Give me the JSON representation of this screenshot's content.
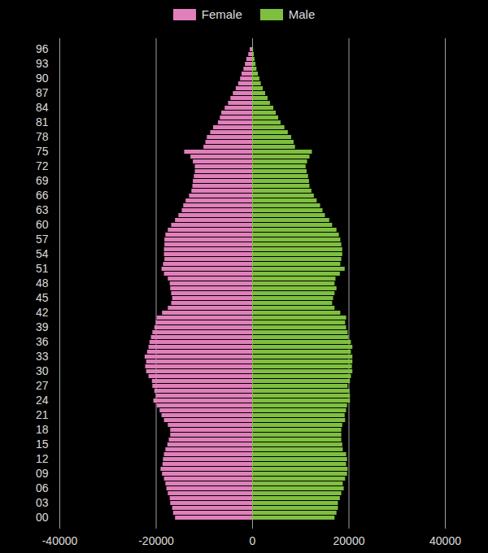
{
  "chart_data": {
    "type": "bar",
    "orientation": "horizontal",
    "categories": [
      "00",
      null,
      null,
      "03",
      null,
      null,
      "06",
      null,
      null,
      "09",
      null,
      null,
      "12",
      null,
      null,
      "15",
      null,
      null,
      "18",
      null,
      null,
      "21",
      null,
      null,
      "24",
      null,
      null,
      "27",
      null,
      null,
      "30",
      null,
      null,
      "33",
      null,
      null,
      "36",
      null,
      null,
      "39",
      null,
      null,
      "42",
      null,
      null,
      "45",
      null,
      null,
      "48",
      null,
      null,
      "51",
      null,
      null,
      "54",
      null,
      null,
      "57",
      null,
      null,
      "60",
      null,
      null,
      "63",
      null,
      null,
      "66",
      null,
      null,
      "69",
      null,
      null,
      "72",
      null,
      null,
      "75",
      null,
      null,
      "78",
      null,
      null,
      "81",
      null,
      null,
      "84",
      null,
      null,
      "87",
      null,
      null,
      "90",
      null,
      null,
      "93",
      null,
      null,
      "96"
    ],
    "series": [
      {
        "name": "Female",
        "color": "#e07fba",
        "values": [
          -16000,
          -16400,
          -16600,
          -17000,
          -17100,
          -17500,
          -17800,
          -18000,
          -18300,
          -18700,
          -19000,
          -18600,
          -18500,
          -18300,
          -18000,
          -17600,
          -17300,
          -17000,
          -17000,
          -17500,
          -18300,
          -18800,
          -19200,
          -19800,
          -20500,
          -20000,
          -20300,
          -20700,
          -20800,
          -21500,
          -22000,
          -22200,
          -22000,
          -22300,
          -21800,
          -21500,
          -21300,
          -21000,
          -20700,
          -20300,
          -20000,
          -19800,
          -18700,
          -17500,
          -16800,
          -16600,
          -16800,
          -17000,
          -17100,
          -17500,
          -18300,
          -18800,
          -18500,
          -18200,
          -18300,
          -18300,
          -18200,
          -18200,
          -18000,
          -17500,
          -16800,
          -16000,
          -15300,
          -14600,
          -14300,
          -13800,
          -13100,
          -12600,
          -12400,
          -12300,
          -12100,
          -11900,
          -11900,
          -12300,
          -12800,
          -14100,
          -10100,
          -9700,
          -9400,
          -8700,
          -8100,
          -7100,
          -6700,
          -6400,
          -5700,
          -5000,
          -4500,
          -4000,
          -3400,
          -2900,
          -2500,
          -2200,
          -1800,
          -1500,
          -1200,
          -800,
          -500
        ]
      },
      {
        "name": "Male",
        "color": "#7fbf3f",
        "values": [
          17100,
          17500,
          17800,
          17800,
          18200,
          18500,
          19000,
          18800,
          19300,
          19700,
          19800,
          19500,
          19700,
          19500,
          18800,
          18700,
          18500,
          18500,
          18500,
          18700,
          19300,
          19200,
          19500,
          19700,
          20300,
          20300,
          20200,
          19800,
          20300,
          20500,
          20800,
          20700,
          20800,
          20800,
          20500,
          20800,
          20500,
          20000,
          19800,
          19500,
          19300,
          19500,
          18300,
          17100,
          16600,
          16800,
          17100,
          17500,
          17100,
          17300,
          18200,
          19200,
          18300,
          18500,
          18700,
          18700,
          18500,
          18300,
          18000,
          17500,
          16600,
          16000,
          15100,
          14600,
          14100,
          13400,
          12800,
          12300,
          11900,
          11800,
          11600,
          11300,
          11100,
          11400,
          11900,
          12400,
          8900,
          8600,
          8100,
          7400,
          6700,
          5900,
          5400,
          4900,
          4400,
          3700,
          3200,
          2700,
          2200,
          1800,
          1500,
          1200,
          900,
          700,
          500,
          350,
          200
        ]
      }
    ],
    "xlim": [
      -40000,
      40000
    ],
    "xticks": [
      -40000,
      -20000,
      0,
      20000,
      40000
    ],
    "grid": true,
    "legend": "top"
  }
}
